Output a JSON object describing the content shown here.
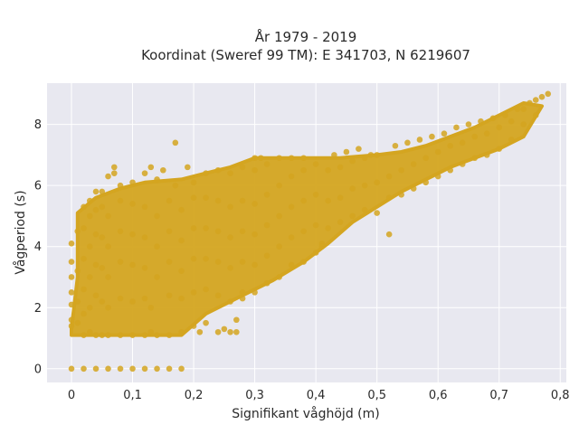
{
  "chart_data": {
    "type": "scatter",
    "title_lines": [
      "År 1979 - 2019",
      "Koordinat (Sweref 99 TM): E 341703, N 6219607"
    ],
    "xlabel": "Signifikant våghöjd (m)",
    "ylabel": "Vågperiod (s)",
    "xlim": [
      -0.04,
      0.81
    ],
    "ylim": [
      -0.45,
      9.35
    ],
    "xticks": [
      0,
      0.1,
      0.2,
      0.3,
      0.4,
      0.5,
      0.6,
      0.7,
      0.8
    ],
    "xtick_labels": [
      "0",
      "0,1",
      "0,2",
      "0,3",
      "0,4",
      "0,5",
      "0,6",
      "0,7",
      "0,8"
    ],
    "yticks": [
      0,
      2,
      4,
      6,
      8
    ],
    "ytick_labels": [
      "0",
      "2",
      "4",
      "6",
      "8"
    ],
    "grid": true,
    "colors": {
      "marker": "#d4a520",
      "plot_background": "#e8e8f0",
      "grid": "#ffffff"
    },
    "points": [
      [
        0,
        0
      ],
      [
        0.02,
        0
      ],
      [
        0.04,
        0
      ],
      [
        0.06,
        0
      ],
      [
        0.08,
        0
      ],
      [
        0.1,
        0
      ],
      [
        0.12,
        0
      ],
      [
        0.14,
        0
      ],
      [
        0.16,
        0
      ],
      [
        0.18,
        0
      ],
      [
        0,
        1.4
      ],
      [
        0,
        2.5
      ],
      [
        0,
        3.0
      ],
      [
        0,
        3.5
      ],
      [
        0,
        4.1
      ],
      [
        0,
        2.1
      ],
      [
        0,
        1.6
      ],
      [
        0.01,
        1.5
      ],
      [
        0.01,
        2.2
      ],
      [
        0.01,
        3.2
      ],
      [
        0.01,
        4.5
      ],
      [
        0.02,
        1.1
      ],
      [
        0.02,
        1.8
      ],
      [
        0.02,
        2.6
      ],
      [
        0.02,
        3.6
      ],
      [
        0.02,
        4.6
      ],
      [
        0.02,
        5.3
      ],
      [
        0.03,
        1.2
      ],
      [
        0.03,
        2.0
      ],
      [
        0.03,
        3.0
      ],
      [
        0.03,
        4.0
      ],
      [
        0.03,
        5.0
      ],
      [
        0.03,
        5.5
      ],
      [
        0.04,
        1.1
      ],
      [
        0.04,
        2.4
      ],
      [
        0.04,
        3.4
      ],
      [
        0.04,
        4.4
      ],
      [
        0.04,
        5.2
      ],
      [
        0.04,
        5.8
      ],
      [
        0.05,
        1.1
      ],
      [
        0.05,
        2.2
      ],
      [
        0.05,
        3.3
      ],
      [
        0.05,
        4.3
      ],
      [
        0.05,
        5.3
      ],
      [
        0.05,
        5.8
      ],
      [
        0.06,
        1.1
      ],
      [
        0.06,
        2.0
      ],
      [
        0.06,
        3.0
      ],
      [
        0.06,
        4.0
      ],
      [
        0.06,
        5.0
      ],
      [
        0.06,
        6.3
      ],
      [
        0.07,
        6.6
      ],
      [
        0.07,
        6.4
      ],
      [
        0.08,
        1.1
      ],
      [
        0.08,
        2.3
      ],
      [
        0.08,
        3.5
      ],
      [
        0.08,
        4.5
      ],
      [
        0.08,
        5.5
      ],
      [
        0.08,
        6.0
      ],
      [
        0.1,
        1.1
      ],
      [
        0.1,
        2.2
      ],
      [
        0.1,
        3.4
      ],
      [
        0.1,
        4.4
      ],
      [
        0.1,
        5.4
      ],
      [
        0.1,
        6.1
      ],
      [
        0.12,
        1.1
      ],
      [
        0.12,
        2.3
      ],
      [
        0.12,
        3.3
      ],
      [
        0.12,
        4.3
      ],
      [
        0.12,
        5.3
      ],
      [
        0.12,
        6.4
      ],
      [
        0.13,
        1.2
      ],
      [
        0.13,
        2.0
      ],
      [
        0.13,
        6.6
      ],
      [
        0.14,
        1.1
      ],
      [
        0.14,
        3.0
      ],
      [
        0.14,
        4.0
      ],
      [
        0.14,
        5.0
      ],
      [
        0.14,
        6.2
      ],
      [
        0.16,
        1.1
      ],
      [
        0.16,
        2.4
      ],
      [
        0.16,
        3.5
      ],
      [
        0.16,
        4.5
      ],
      [
        0.16,
        5.5
      ],
      [
        0.15,
        6.5
      ],
      [
        0.17,
        6.0
      ],
      [
        0.17,
        7.4
      ],
      [
        0.18,
        1.2
      ],
      [
        0.18,
        2.3
      ],
      [
        0.18,
        3.2
      ],
      [
        0.18,
        4.2
      ],
      [
        0.18,
        5.2
      ],
      [
        0.19,
        6.6
      ],
      [
        0.2,
        1.4
      ],
      [
        0.2,
        2.5
      ],
      [
        0.2,
        3.6
      ],
      [
        0.2,
        4.6
      ],
      [
        0.2,
        5.6
      ],
      [
        0.2,
        6.1
      ],
      [
        0.22,
        1.5
      ],
      [
        0.22,
        2.6
      ],
      [
        0.22,
        3.6
      ],
      [
        0.22,
        4.6
      ],
      [
        0.22,
        5.6
      ],
      [
        0.22,
        6.4
      ],
      [
        0.21,
        1.2
      ],
      [
        0.24,
        1.2
      ],
      [
        0.24,
        2.4
      ],
      [
        0.24,
        3.5
      ],
      [
        0.24,
        4.5
      ],
      [
        0.24,
        5.5
      ],
      [
        0.24,
        6.5
      ],
      [
        0.25,
        1.3
      ],
      [
        0.26,
        1.2
      ],
      [
        0.27,
        1.2
      ],
      [
        0.26,
        2.2
      ],
      [
        0.26,
        3.3
      ],
      [
        0.26,
        4.3
      ],
      [
        0.26,
        5.3
      ],
      [
        0.26,
        6.4
      ],
      [
        0.27,
        1.6
      ],
      [
        0.28,
        2.3
      ],
      [
        0.28,
        2.5
      ],
      [
        0.28,
        3.5
      ],
      [
        0.28,
        4.5
      ],
      [
        0.28,
        5.5
      ],
      [
        0.28,
        6.6
      ],
      [
        0.3,
        2.5
      ],
      [
        0.3,
        3.4
      ],
      [
        0.3,
        4.4
      ],
      [
        0.3,
        5.4
      ],
      [
        0.3,
        6.5
      ],
      [
        0.31,
        6.9
      ],
      [
        0.3,
        6.9
      ],
      [
        0.32,
        2.8
      ],
      [
        0.32,
        3.7
      ],
      [
        0.32,
        4.7
      ],
      [
        0.32,
        5.7
      ],
      [
        0.32,
        6.7
      ],
      [
        0.34,
        3.0
      ],
      [
        0.34,
        4.0
      ],
      [
        0.34,
        5.0
      ],
      [
        0.34,
        6.0
      ],
      [
        0.34,
        6.9
      ],
      [
        0.36,
        3.4
      ],
      [
        0.36,
        4.3
      ],
      [
        0.36,
        5.3
      ],
      [
        0.36,
        6.3
      ],
      [
        0.36,
        6.9
      ],
      [
        0.38,
        3.5
      ],
      [
        0.38,
        4.5
      ],
      [
        0.38,
        5.5
      ],
      [
        0.38,
        6.5
      ],
      [
        0.38,
        6.9
      ],
      [
        0.4,
        3.8
      ],
      [
        0.4,
        4.7
      ],
      [
        0.4,
        5.7
      ],
      [
        0.4,
        6.7
      ],
      [
        0.41,
        4.1
      ],
      [
        0.41,
        4.0
      ],
      [
        0.42,
        4.6
      ],
      [
        0.42,
        5.5
      ],
      [
        0.42,
        6.5
      ],
      [
        0.43,
        7.0
      ],
      [
        0.44,
        4.8
      ],
      [
        0.44,
        5.6
      ],
      [
        0.44,
        6.6
      ],
      [
        0.45,
        7.1
      ],
      [
        0.46,
        5.0
      ],
      [
        0.46,
        5.9
      ],
      [
        0.46,
        6.8
      ],
      [
        0.47,
        7.2
      ],
      [
        0.48,
        5.2
      ],
      [
        0.48,
        6.0
      ],
      [
        0.48,
        6.9
      ],
      [
        0.49,
        7.0
      ],
      [
        0.5,
        5.1
      ],
      [
        0.5,
        6.1
      ],
      [
        0.5,
        7.0
      ],
      [
        0.52,
        4.4
      ],
      [
        0.52,
        5.6
      ],
      [
        0.52,
        6.3
      ],
      [
        0.53,
        7.3
      ],
      [
        0.54,
        5.7
      ],
      [
        0.54,
        6.5
      ],
      [
        0.55,
        7.4
      ],
      [
        0.56,
        5.9
      ],
      [
        0.56,
        6.7
      ],
      [
        0.57,
        7.5
      ],
      [
        0.58,
        6.1
      ],
      [
        0.58,
        6.9
      ],
      [
        0.59,
        7.6
      ],
      [
        0.6,
        6.3
      ],
      [
        0.6,
        7.1
      ],
      [
        0.61,
        7.7
      ],
      [
        0.62,
        6.5
      ],
      [
        0.62,
        7.3
      ],
      [
        0.63,
        7.9
      ],
      [
        0.64,
        6.7
      ],
      [
        0.64,
        7.4
      ],
      [
        0.65,
        8.0
      ],
      [
        0.66,
        6.9
      ],
      [
        0.66,
        7.6
      ],
      [
        0.67,
        8.1
      ],
      [
        0.68,
        7.0
      ],
      [
        0.68,
        7.7
      ],
      [
        0.69,
        8.2
      ],
      [
        0.7,
        7.2
      ],
      [
        0.7,
        7.9
      ],
      [
        0.71,
        8.3
      ],
      [
        0.72,
        7.5
      ],
      [
        0.72,
        8.1
      ],
      [
        0.73,
        8.5
      ],
      [
        0.74,
        8.0
      ],
      [
        0.74,
        8.5
      ],
      [
        0.75,
        8.7
      ],
      [
        0.76,
        8.3
      ],
      [
        0.76,
        8.8
      ],
      [
        0.77,
        8.9
      ],
      [
        0.78,
        9.0
      ]
    ],
    "dense_regions": [
      [
        [
          0.0,
          1.1
        ],
        [
          0.18,
          1.1
        ],
        [
          0.22,
          1.8
        ],
        [
          0.27,
          2.3
        ],
        [
          0.33,
          2.9
        ],
        [
          0.38,
          3.5
        ],
        [
          0.42,
          4.1
        ],
        [
          0.46,
          4.8
        ],
        [
          0.5,
          5.3
        ],
        [
          0.54,
          5.8
        ],
        [
          0.58,
          6.2
        ],
        [
          0.62,
          6.6
        ],
        [
          0.66,
          6.9
        ],
        [
          0.7,
          7.2
        ],
        [
          0.74,
          7.6
        ],
        [
          0.77,
          8.6
        ],
        [
          0.74,
          8.7
        ],
        [
          0.7,
          8.3
        ],
        [
          0.66,
          7.9
        ],
        [
          0.62,
          7.6
        ],
        [
          0.58,
          7.3
        ],
        [
          0.54,
          7.1
        ],
        [
          0.5,
          7.0
        ],
        [
          0.44,
          6.9
        ],
        [
          0.38,
          6.9
        ],
        [
          0.3,
          6.9
        ],
        [
          0.26,
          6.6
        ],
        [
          0.22,
          6.4
        ],
        [
          0.18,
          6.2
        ],
        [
          0.12,
          6.1
        ],
        [
          0.08,
          5.9
        ],
        [
          0.04,
          5.6
        ],
        [
          0.01,
          5.1
        ],
        [
          0.01,
          3.0
        ],
        [
          0.0,
          1.3
        ]
      ]
    ]
  }
}
